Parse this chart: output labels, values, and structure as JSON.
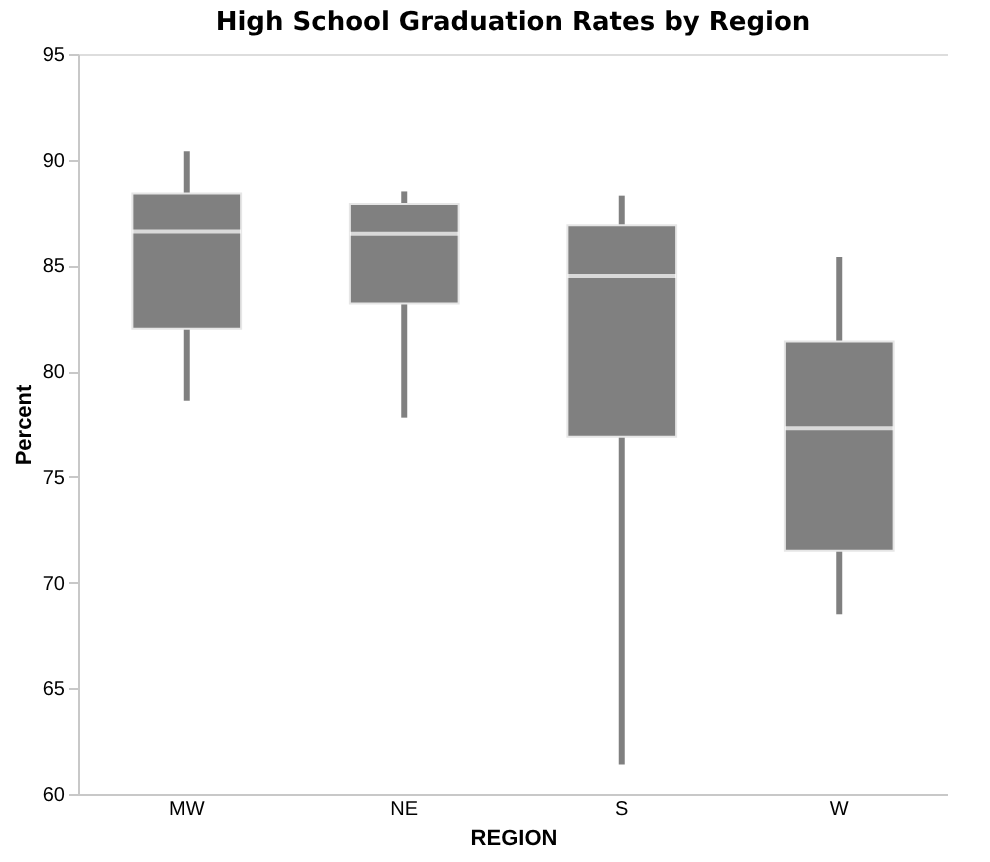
{
  "chart_data": {
    "type": "box",
    "title": "High School Graduation Rates by Region",
    "xlabel": "REGION",
    "ylabel": "Percent",
    "categories": [
      "MW",
      "NE",
      "S",
      "W"
    ],
    "boxes": [
      {
        "low": 78.6,
        "q1": 82.0,
        "median": 86.6,
        "q3": 88.4,
        "high": 90.4
      },
      {
        "low": 77.8,
        "q1": 83.2,
        "median": 86.5,
        "q3": 87.9,
        "high": 88.5
      },
      {
        "low": 61.4,
        "q1": 76.9,
        "median": 84.5,
        "q3": 86.9,
        "high": 88.3
      },
      {
        "low": 68.5,
        "q1": 71.5,
        "median": 77.3,
        "q3": 81.4,
        "high": 85.4
      }
    ],
    "color": "#808080",
    "ylim": [
      60,
      95
    ],
    "yticks": [
      60,
      65,
      70,
      75,
      80,
      85,
      90,
      95
    ],
    "grid": false
  }
}
